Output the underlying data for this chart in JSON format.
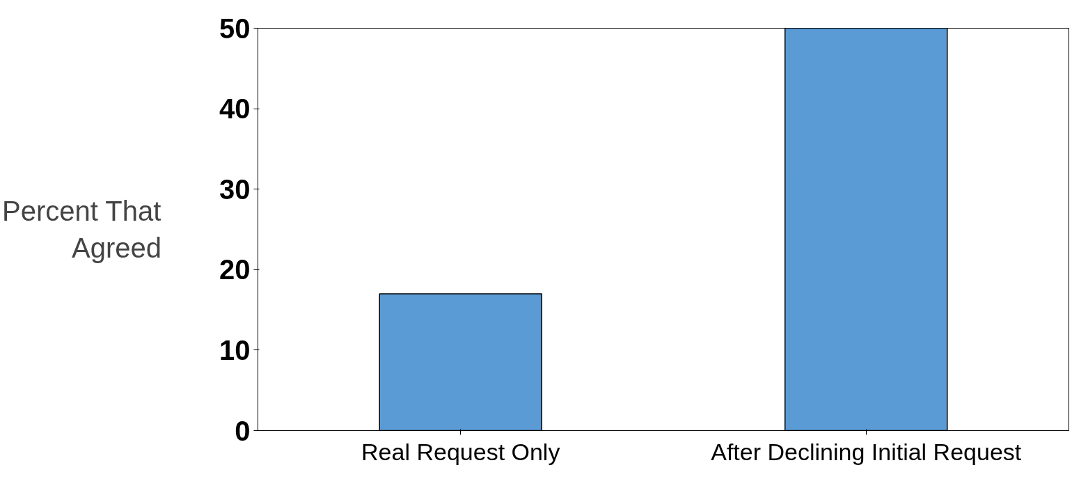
{
  "chart_data": {
    "type": "bar",
    "ylabel": "Percent That Agreed",
    "categories": [
      "Real Request Only",
      "After Declining Initial Request"
    ],
    "values": [
      17,
      50
    ],
    "color": "#5b9bd5",
    "ylim": [
      0,
      50
    ],
    "yticks": [
      0,
      10,
      20,
      30,
      40,
      50
    ],
    "grid": false
  }
}
